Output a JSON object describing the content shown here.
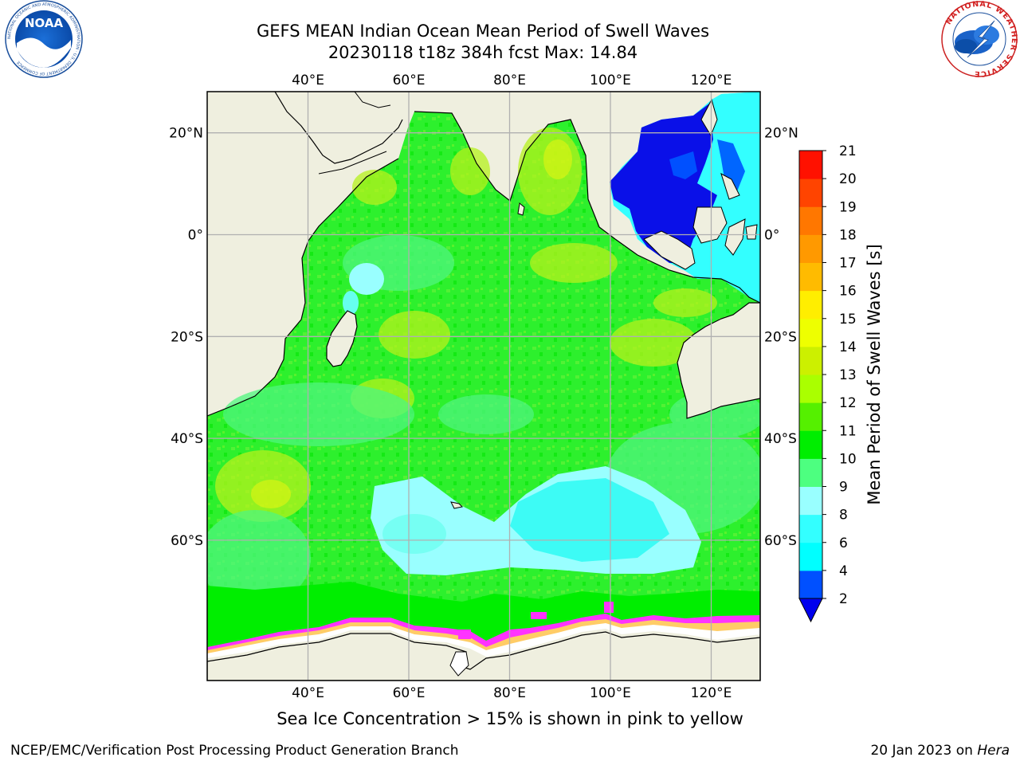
{
  "title": {
    "line1": "GEFS MEAN Indian Ocean Mean Period of Swell Waves",
    "line2": "20230118 t18z 384h fcst   Max: 14.84"
  },
  "logos": {
    "left": "NOAA",
    "left_ring_text": "NATIONAL OCEANIC AND ATMOSPHERIC ADMINISTRATION · U.S. DEPARTMENT OF COMMERCE",
    "right_ring_text": "NATIONAL WEATHER SERVICE"
  },
  "map": {
    "lon_ticks": [
      {
        "lon": 40,
        "label": "40°E"
      },
      {
        "lon": 60,
        "label": "60°E"
      },
      {
        "lon": 80,
        "label": "80°E"
      },
      {
        "lon": 100,
        "label": "100°E"
      },
      {
        "lon": 120,
        "label": "120°E"
      }
    ],
    "lat_ticks_left": [
      {
        "lat": 20,
        "label": "20°N"
      },
      {
        "lat": 0,
        "label": "0°"
      },
      {
        "lat": -20,
        "label": "20°S"
      },
      {
        "lat": -40,
        "label": "40°S"
      },
      {
        "lat": -60,
        "label": "60°S"
      }
    ],
    "lat_ticks_right": [
      {
        "lat": 20,
        "label": "20°N"
      },
      {
        "lat": 0,
        "label": "0°"
      },
      {
        "lat": -20,
        "label": "20°S"
      },
      {
        "lat": -40,
        "label": "40°S"
      },
      {
        "lat": -60,
        "label": "60°S"
      }
    ],
    "colors": {
      "land": "#efefdf",
      "grid": "#b0b0b0",
      "ocean_green": "#2df02d",
      "ice": [
        "#ff33ff",
        "#ffcc66",
        "#ffffff"
      ]
    }
  },
  "colorbar": {
    "title": "Mean Period of Swell Waves [s]",
    "levels": [
      "2",
      "4",
      "6",
      "8",
      "9",
      "10",
      "11",
      "12",
      "13",
      "14",
      "15",
      "16",
      "17",
      "18",
      "19",
      "20",
      "21"
    ],
    "colors": [
      "#0050ff",
      "#00ffff",
      "#33ffff",
      "#99ffff",
      "#4dff80",
      "#00ee00",
      "#55f000",
      "#aaff00",
      "#ccf000",
      "#eeff00",
      "#ffee00",
      "#ffbb00",
      "#ff9900",
      "#ff7700",
      "#ff4400",
      "#ff1100"
    ],
    "under_color": "#0000ee"
  },
  "ice_note": "Sea Ice Concentration > 15% is shown in pink to yellow",
  "footer": {
    "left": "NCEP/EMC/Verification Post Processing Product Generation Branch",
    "right_date": "20 Jan 2023 on",
    "right_host": "Hera"
  }
}
